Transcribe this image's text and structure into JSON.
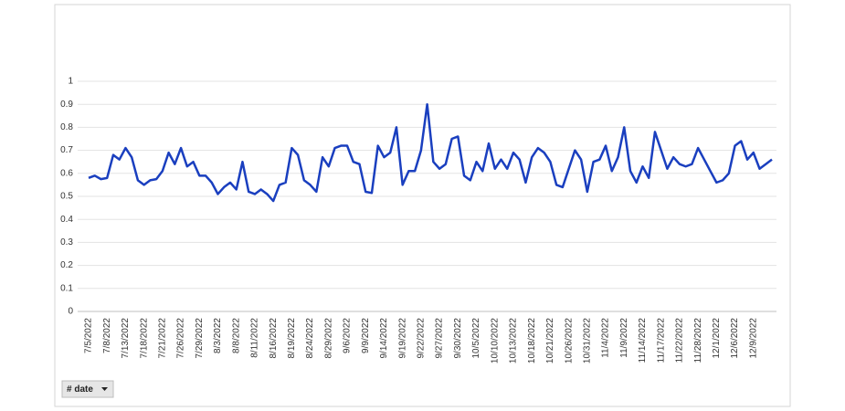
{
  "chart_data": {
    "type": "line",
    "categories": [
      "7/5/2022",
      null,
      null,
      "7/8/2022",
      null,
      null,
      "7/13/2022",
      null,
      null,
      "7/18/2022",
      null,
      null,
      "7/21/2022",
      null,
      null,
      "7/26/2022",
      null,
      null,
      "7/29/2022",
      null,
      null,
      "8/3/2022",
      null,
      null,
      "8/8/2022",
      null,
      null,
      "8/11/2022",
      null,
      null,
      "8/16/2022",
      null,
      null,
      "8/19/2022",
      null,
      null,
      "8/24/2022",
      null,
      null,
      "8/29/2022",
      null,
      null,
      "9/6/2022",
      null,
      null,
      "9/9/2022",
      null,
      null,
      "9/14/2022",
      null,
      null,
      "9/19/2022",
      null,
      null,
      "9/22/2022",
      null,
      null,
      "9/27/2022",
      null,
      null,
      "9/30/2022",
      null,
      null,
      "10/5/2022",
      null,
      null,
      "10/10/2022",
      null,
      null,
      "10/13/2022",
      null,
      null,
      "10/18/2022",
      null,
      null,
      "10/21/2022",
      null,
      null,
      "10/26/2022",
      null,
      null,
      "10/31/2022",
      null,
      null,
      "11/4/2022",
      null,
      null,
      "11/9/2022",
      null,
      null,
      "11/14/2022",
      null,
      null,
      "11/17/2022",
      null,
      null,
      "11/22/2022",
      null,
      null,
      "11/28/2022",
      null,
      null,
      "12/1/2022",
      null,
      null,
      "12/6/2022",
      null,
      null,
      "12/9/2022",
      null,
      null,
      null
    ],
    "series": [
      {
        "color": "#1a3fbf",
        "values": [
          0.58,
          0.59,
          0.575,
          0.58,
          0.68,
          0.66,
          0.71,
          0.67,
          0.57,
          0.55,
          0.57,
          0.575,
          0.61,
          0.69,
          0.64,
          0.71,
          0.63,
          0.65,
          0.59,
          0.59,
          0.56,
          0.51,
          0.54,
          0.56,
          0.53,
          0.65,
          0.52,
          0.51,
          0.53,
          0.51,
          0.48,
          0.55,
          0.56,
          0.71,
          0.68,
          0.57,
          0.55,
          0.52,
          0.67,
          0.63,
          0.71,
          0.72,
          0.72,
          0.65,
          0.64,
          0.52,
          0.515,
          0.72,
          0.67,
          0.69,
          0.8,
          0.55,
          0.61,
          0.61,
          0.7,
          0.9,
          0.65,
          0.62,
          0.64,
          0.75,
          0.76,
          0.59,
          0.57,
          0.65,
          0.61,
          0.73,
          0.62,
          0.66,
          0.62,
          0.69,
          0.66,
          0.56,
          0.67,
          0.71,
          0.69,
          0.65,
          0.55,
          0.54,
          0.62,
          0.7,
          0.66,
          0.52,
          0.65,
          0.66,
          0.72,
          0.61,
          0.67,
          0.8,
          0.61,
          0.56,
          0.63,
          0.58,
          0.78,
          0.7,
          0.62,
          0.67,
          0.64,
          0.63,
          0.64,
          0.71,
          0.66,
          0.61,
          0.56,
          0.57,
          0.6,
          0.72,
          0.74,
          0.66,
          0.69,
          0.62,
          0.64,
          0.66
        ]
      }
    ],
    "ylim": [
      0,
      1
    ],
    "yticks": [
      0,
      0.1,
      0.2,
      0.3,
      0.4,
      0.5,
      0.6,
      0.7,
      0.8,
      0.9,
      1
    ],
    "grid": true,
    "field_button": "# date"
  }
}
